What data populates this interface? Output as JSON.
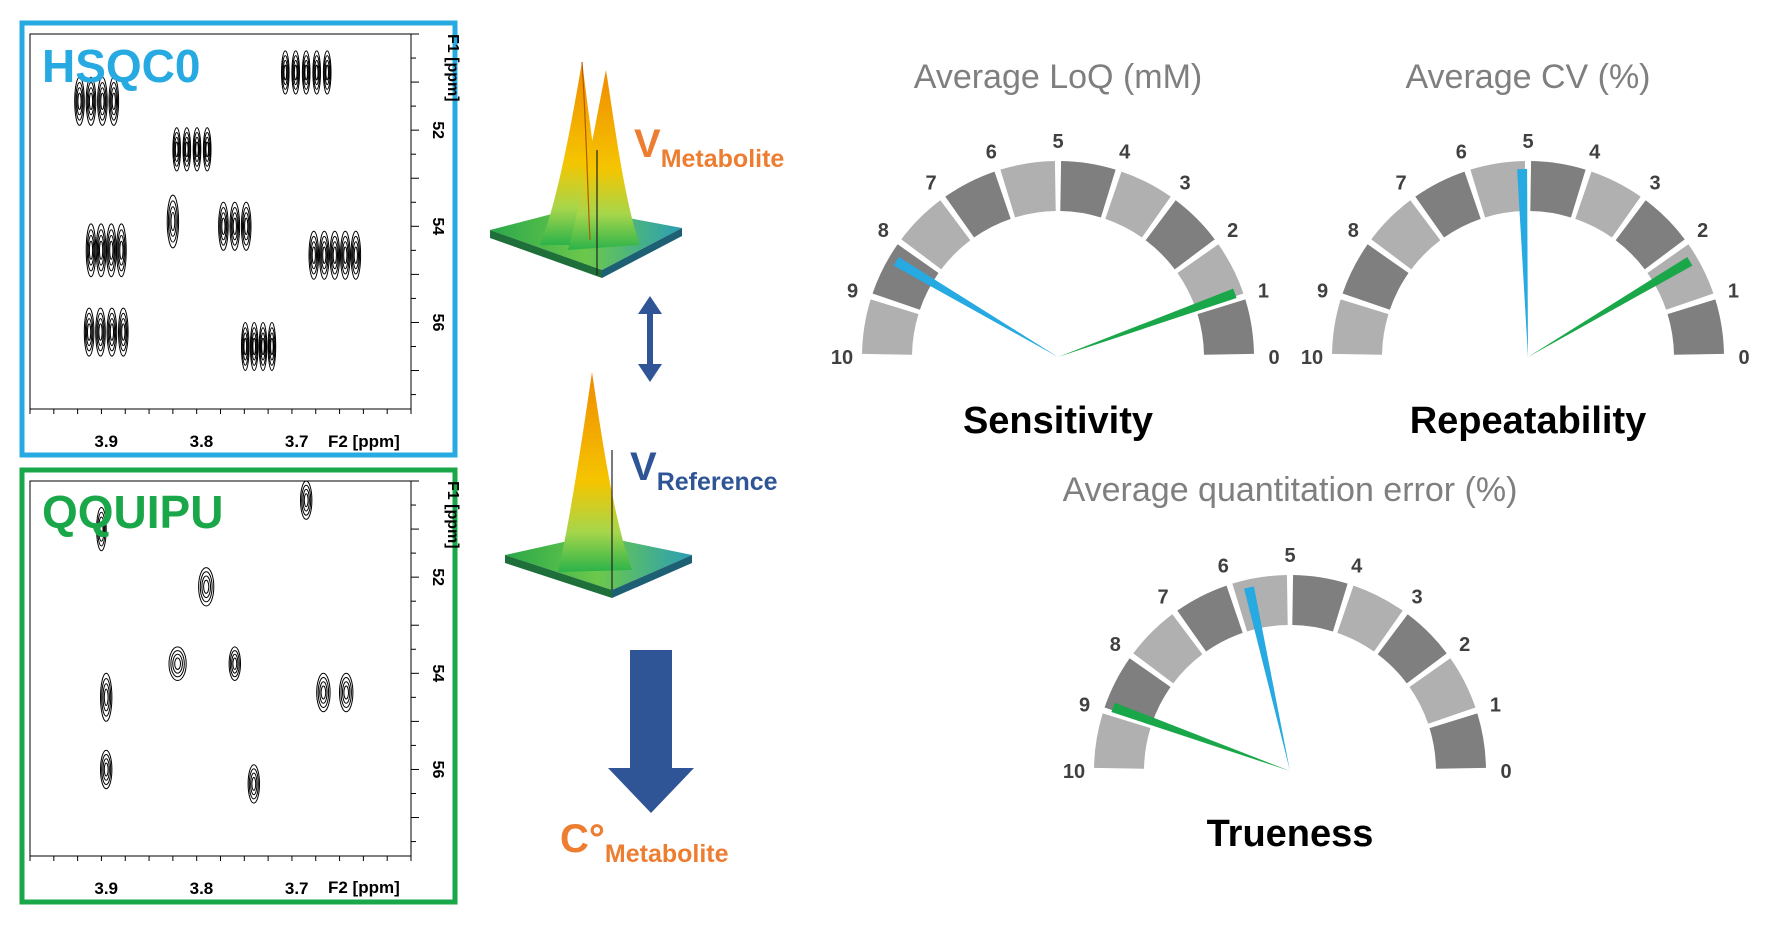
{
  "spectra": [
    {
      "title": "HSQC0",
      "color": "#27a9e1",
      "f1_label": "F1 [ppm]",
      "f2_label": "F2 [ppm]",
      "f1_ticks": [
        "52",
        "54",
        "56"
      ],
      "f2_ticks": [
        "3.9",
        "3.8",
        "3.7"
      ],
      "f1_range": [
        50,
        57.8
      ],
      "f2_range": [
        3.98,
        3.58
      ],
      "peaks": [
        {
          "x": 3.69,
          "y": 50.8,
          "n": 5,
          "spread": 0.022,
          "w": 0.004,
          "h": 0.45
        },
        {
          "x": 3.91,
          "y": 51.4,
          "n": 4,
          "spread": 0.018,
          "w": 0.005,
          "h": 0.5
        },
        {
          "x": 3.81,
          "y": 52.4,
          "n": 4,
          "spread": 0.016,
          "w": 0.004,
          "h": 0.45
        },
        {
          "x": 3.83,
          "y": 53.9,
          "n": 1,
          "spread": 0.0,
          "w": 0.006,
          "h": 0.55
        },
        {
          "x": 3.765,
          "y": 54.0,
          "n": 3,
          "spread": 0.012,
          "w": 0.005,
          "h": 0.5
        },
        {
          "x": 3.9,
          "y": 54.5,
          "n": 4,
          "spread": 0.016,
          "w": 0.005,
          "h": 0.55
        },
        {
          "x": 3.66,
          "y": 54.6,
          "n": 5,
          "spread": 0.022,
          "w": 0.005,
          "h": 0.5
        },
        {
          "x": 3.9,
          "y": 56.2,
          "n": 4,
          "spread": 0.018,
          "w": 0.005,
          "h": 0.5
        },
        {
          "x": 3.74,
          "y": 56.5,
          "n": 4,
          "spread": 0.014,
          "w": 0.004,
          "h": 0.5
        }
      ]
    },
    {
      "title": "QQUIPU",
      "color": "#1aa74a",
      "f1_label": "F1 [ppm]",
      "f2_label": "F2 [ppm]",
      "f1_ticks": [
        "52",
        "54",
        "56"
      ],
      "f2_ticks": [
        "3.9",
        "3.8",
        "3.7"
      ],
      "f1_range": [
        50,
        57.8
      ],
      "f2_range": [
        3.98,
        3.58
      ],
      "peaks": [
        {
          "x": 3.69,
          "y": 50.4,
          "n": 1,
          "spread": 0.0,
          "w": 0.006,
          "h": 0.4
        },
        {
          "x": 3.905,
          "y": 51.0,
          "n": 1,
          "spread": 0.0,
          "w": 0.005,
          "h": 0.45
        },
        {
          "x": 3.795,
          "y": 52.2,
          "n": 1,
          "spread": 0.0,
          "w": 0.008,
          "h": 0.4
        },
        {
          "x": 3.825,
          "y": 53.8,
          "n": 1,
          "spread": 0.0,
          "w": 0.009,
          "h": 0.35
        },
        {
          "x": 3.765,
          "y": 53.8,
          "n": 1,
          "spread": 0.0,
          "w": 0.006,
          "h": 0.35
        },
        {
          "x": 3.66,
          "y": 54.4,
          "n": 2,
          "spread": 0.012,
          "w": 0.007,
          "h": 0.4
        },
        {
          "x": 3.9,
          "y": 54.5,
          "n": 1,
          "spread": 0.0,
          "w": 0.006,
          "h": 0.5
        },
        {
          "x": 3.9,
          "y": 56.0,
          "n": 1,
          "spread": 0.0,
          "w": 0.006,
          "h": 0.4
        },
        {
          "x": 3.745,
          "y": 56.3,
          "n": 1,
          "spread": 0.0,
          "w": 0.006,
          "h": 0.4
        }
      ]
    }
  ],
  "volumes": {
    "metabolite_main": "V",
    "metabolite_sub": "Metabolite",
    "reference_main": "V",
    "reference_sub": "Reference",
    "result_main": "C°",
    "result_sub": "Metabolite",
    "orange": "#ed7d31",
    "blue": "#2f5597"
  },
  "gauges": [
    {
      "title": "Average LoQ (mM)",
      "label": "Sensitivity",
      "ticks": [
        "0",
        "1",
        "2",
        "3",
        "4",
        "5",
        "6",
        "7",
        "8",
        "9",
        "10"
      ],
      "blue_value": 8.3,
      "green_value": 1.1
    },
    {
      "title": "Average CV (%)",
      "label": "Repeatability",
      "ticks": [
        "0",
        "1",
        "2",
        "3",
        "4",
        "5",
        "6",
        "7",
        "8",
        "9",
        "10"
      ],
      "blue_value": 5.1,
      "green_value": 1.7
    },
    {
      "title": "Average quantitation error (%)",
      "label": "Trueness",
      "ticks": [
        "0",
        "1",
        "2",
        "3",
        "4",
        "5",
        "6",
        "7",
        "8",
        "9",
        "10"
      ],
      "blue_value": 5.7,
      "green_value": 8.9
    }
  ],
  "needle_colors": {
    "blue": "#27a9e1",
    "green": "#1aa74a"
  }
}
